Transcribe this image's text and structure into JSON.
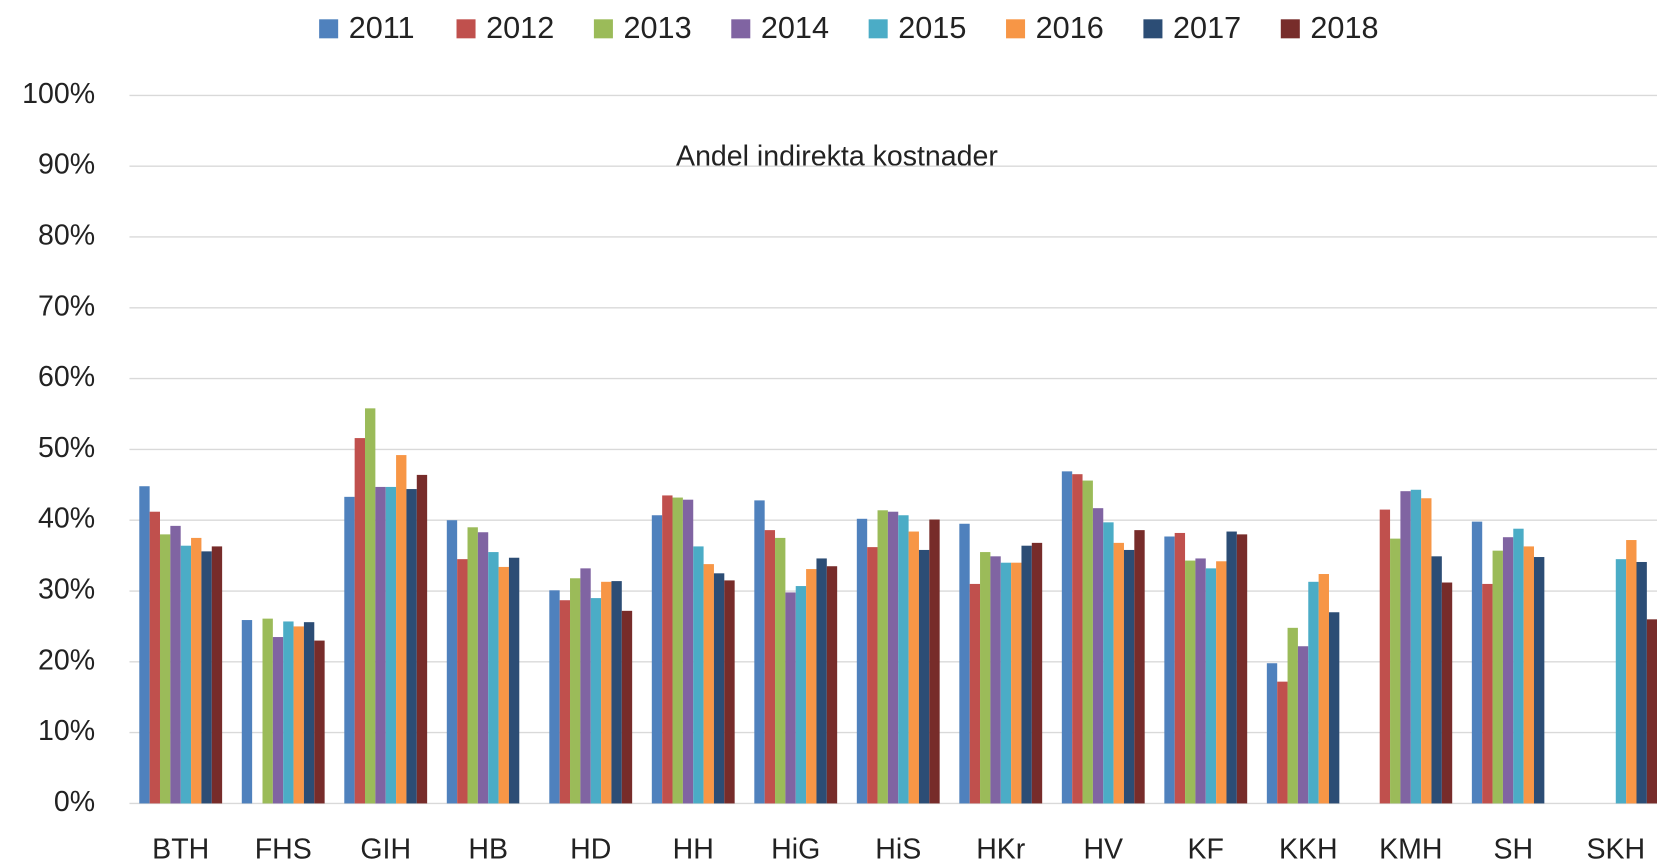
{
  "chart_data": {
    "type": "bar",
    "annotation": "Andel indirekta kostnader",
    "categories": [
      "BTH",
      "FHS",
      "GIH",
      "HB",
      "HD",
      "HH",
      "HiG",
      "HiS",
      "HKr",
      "HV",
      "KF",
      "KKH",
      "KMH",
      "SH",
      "SKH"
    ],
    "series": [
      {
        "name": "2011",
        "color": "#4f81bd",
        "values": [
          44.8,
          25.9,
          43.3,
          40,
          30.1,
          40.7,
          42.8,
          40.2,
          39.5,
          46.9,
          37.7,
          19.8,
          null,
          39.8,
          null
        ]
      },
      {
        "name": "2012",
        "color": "#c0504d",
        "values": [
          41.2,
          null,
          51.6,
          34.5,
          28.7,
          43.5,
          38.6,
          36.2,
          31,
          46.5,
          38.2,
          17.2,
          41.5,
          31,
          null
        ]
      },
      {
        "name": "2013",
        "color": "#9bbb59",
        "values": [
          38,
          26.1,
          55.8,
          39,
          31.8,
          43.2,
          37.5,
          41.4,
          35.5,
          45.6,
          34.3,
          24.8,
          37.4,
          35.7,
          null
        ]
      },
      {
        "name": "2014",
        "color": "#8064a2",
        "values": [
          39.2,
          23.5,
          44.7,
          38.3,
          33.2,
          42.9,
          29.8,
          41.2,
          34.9,
          41.7,
          34.6,
          22.2,
          44.1,
          37.6,
          null
        ]
      },
      {
        "name": "2015",
        "color": "#4bacc6",
        "values": [
          36.4,
          25.7,
          44.7,
          35.5,
          29,
          36.3,
          30.7,
          40.7,
          34,
          39.7,
          33.2,
          31.3,
          44.3,
          38.8,
          34.5
        ]
      },
      {
        "name": "2016",
        "color": "#f79646",
        "values": [
          37.5,
          25,
          49.2,
          33.4,
          31.3,
          33.8,
          33.1,
          38.4,
          34,
          36.8,
          34.2,
          32.4,
          43.1,
          36.3,
          37.2
        ]
      },
      {
        "name": "2017",
        "color": "#2c4d75",
        "values": [
          35.6,
          25.6,
          44.4,
          34.7,
          31.4,
          32.5,
          34.6,
          35.8,
          36.4,
          35.8,
          38.4,
          27,
          34.9,
          34.8,
          34.1
        ]
      },
      {
        "name": "2018",
        "color": "#772c2a",
        "values": [
          36.3,
          23,
          46.4,
          null,
          27.2,
          31.5,
          33.5,
          40.1,
          36.8,
          38.6,
          38,
          null,
          31.2,
          null,
          26
        ]
      }
    ],
    "ylim": [
      0,
      100
    ],
    "yticks": [
      {
        "value": 0,
        "label": "0%"
      },
      {
        "value": 10,
        "label": "10%"
      },
      {
        "value": 20,
        "label": "20%"
      },
      {
        "value": 30,
        "label": "30%"
      },
      {
        "value": 40,
        "label": "40%"
      },
      {
        "value": 50,
        "label": "50%"
      },
      {
        "value": 60,
        "label": "60%"
      },
      {
        "value": 70,
        "label": "70%"
      },
      {
        "value": 80,
        "label": "80%"
      },
      {
        "value": 90,
        "label": "90%"
      },
      {
        "value": 100,
        "label": "100%"
      }
    ],
    "grid": true,
    "legend": "top"
  }
}
